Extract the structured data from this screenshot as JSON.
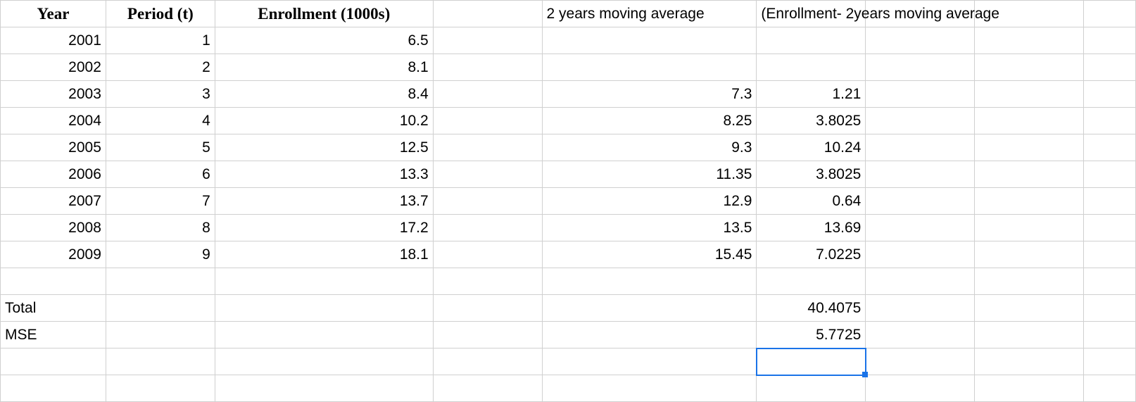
{
  "headers": {
    "year": "Year",
    "period": "Period (t)",
    "enrollment": "Enrollment (1000s)",
    "moving_avg": "2 years moving average",
    "diff_sq": "(Enrollment- 2years moving average"
  },
  "rows": [
    {
      "year": "2001",
      "period": "1",
      "enrollment": "6.5",
      "ma": "",
      "sq": ""
    },
    {
      "year": "2002",
      "period": "2",
      "enrollment": "8.1",
      "ma": "",
      "sq": ""
    },
    {
      "year": "2003",
      "period": "3",
      "enrollment": "8.4",
      "ma": "7.3",
      "sq": "1.21"
    },
    {
      "year": "2004",
      "period": "4",
      "enrollment": "10.2",
      "ma": "8.25",
      "sq": "3.8025"
    },
    {
      "year": "2005",
      "period": "5",
      "enrollment": "12.5",
      "ma": "9.3",
      "sq": "10.24"
    },
    {
      "year": "2006",
      "period": "6",
      "enrollment": "13.3",
      "ma": "11.35",
      "sq": "3.8025"
    },
    {
      "year": "2007",
      "period": "7",
      "enrollment": "13.7",
      "ma": "12.9",
      "sq": "0.64"
    },
    {
      "year": "2008",
      "period": "8",
      "enrollment": "17.2",
      "ma": "13.5",
      "sq": "13.69"
    },
    {
      "year": "2009",
      "period": "9",
      "enrollment": "18.1",
      "ma": "15.45",
      "sq": "7.0225"
    }
  ],
  "summary": {
    "total_label": "Total",
    "total_value": "40.4075",
    "mse_label": "MSE",
    "mse_value": "5.7725"
  },
  "colors": {
    "grid": "#d0d0d0",
    "selection": "#1a73e8",
    "background": "#ffffff",
    "text": "#000000"
  }
}
